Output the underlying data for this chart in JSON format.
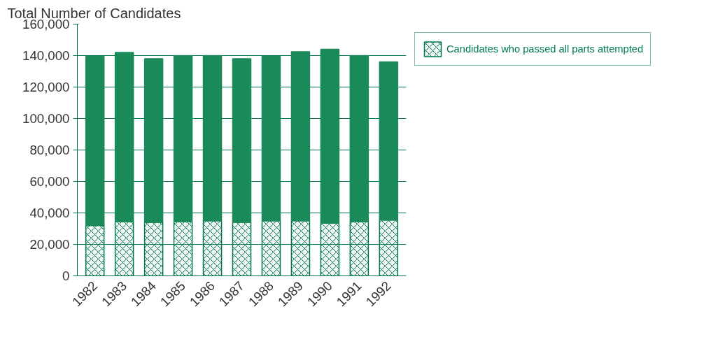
{
  "chart_data": {
    "type": "bar",
    "stacked": true,
    "ylabel": "Total Number of Candidates",
    "categories": [
      "1982",
      "1983",
      "1984",
      "1985",
      "1986",
      "1987",
      "1988",
      "1989",
      "1990",
      "1991",
      "1992"
    ],
    "series": [
      {
        "name": "Candidates who passed all parts attempted",
        "color": "#00794a",
        "values": [
          32000,
          34500,
          34000,
          34500,
          35000,
          34000,
          35000,
          35000,
          33500,
          34500,
          35500
        ]
      },
      {
        "color": "#1b8a5a",
        "values": [
          107500,
          107500,
          104000,
          105500,
          105000,
          104000,
          104500,
          107500,
          110500,
          105500,
          100500
        ]
      }
    ],
    "ylim": [
      0,
      160000
    ],
    "yticks": [
      {
        "value": 0,
        "label": "0"
      },
      {
        "value": 20000,
        "label": "20,000"
      },
      {
        "value": 40000,
        "label": "40,000"
      },
      {
        "value": 60000,
        "label": "60,000"
      },
      {
        "value": 80000,
        "label": "80,000"
      },
      {
        "value": 100000,
        "label": "100,000"
      },
      {
        "value": 120000,
        "label": "120,000"
      },
      {
        "value": 140000,
        "label": "140,000"
      },
      {
        "value": 160000,
        "label": "160,000"
      }
    ],
    "grid": "y",
    "legend": "top right"
  }
}
